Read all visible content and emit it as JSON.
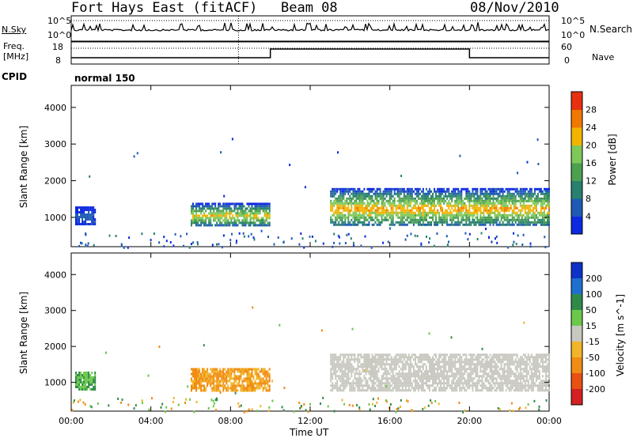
{
  "header": {
    "title": "Fort Hays East (fitACF)",
    "beam": "Beam 08",
    "date": "08/Nov/2010"
  },
  "panels": {
    "nsky_label": "N.Sky",
    "nsearch_label": "N.Search",
    "freq_label_1": "Freq.",
    "freq_label_2": "[MHz]",
    "nave_label": "Nave",
    "cpid_label": "CPID",
    "cpid_value": "normal 150",
    "left_ticks_top": [
      "10^5",
      "10^0"
    ],
    "right_ticks_top": [
      "10^5",
      "10^0"
    ],
    "left_ticks_freq": [
      "18",
      "8"
    ],
    "right_ticks_nave": [
      "60",
      "0"
    ]
  },
  "colors": {
    "power": [
      "#0c28e0",
      "#1e5ab4",
      "#28806e",
      "#4ca050",
      "#7ec85a",
      "#f2b400",
      "#f07800",
      "#e83010"
    ],
    "velocity_pos": [
      "#0c32c8",
      "#1f6fcf",
      "#2f8a4a",
      "#6cc84a"
    ],
    "velocity_zero": "#c8c8c0",
    "velocity_neg": [
      "#f2b428",
      "#f08c14",
      "#e85014",
      "#d42020"
    ]
  },
  "chart_data": [
    {
      "type": "heatmap",
      "title": "Power",
      "xlabel": "Time UT",
      "ylabel": "Slant Range [km]",
      "x_ticks": [
        "00:00",
        "04:00",
        "08:00",
        "12:00",
        "16:00",
        "20:00",
        "00:00"
      ],
      "y_ticks": [
        1000,
        2000,
        3000,
        4000
      ],
      "ylim": [
        200,
        4600
      ],
      "xlim_hours": [
        0,
        24
      ],
      "colorbar": {
        "label": "Power [dB]",
        "ticks": [
          4,
          8,
          12,
          16,
          20,
          24,
          28
        ],
        "range": [
          0,
          32
        ]
      },
      "regions": [
        {
          "t": [
            6.0,
            10.0
          ],
          "range_km": [
            800,
            1400
          ],
          "peak_db": 22
        },
        {
          "t": [
            13.0,
            24.0
          ],
          "range_km": [
            800,
            1800
          ],
          "peak_db": 24
        },
        {
          "t": [
            0.2,
            1.2
          ],
          "range_km": [
            800,
            1300
          ],
          "peak_db": 6
        }
      ]
    },
    {
      "type": "heatmap",
      "title": "Velocity",
      "xlabel": "Time UT",
      "ylabel": "Slant Range [km]",
      "x_ticks": [
        "00:00",
        "04:00",
        "08:00",
        "12:00",
        "16:00",
        "20:00",
        "00:00"
      ],
      "y_ticks": [
        1000,
        2000,
        3000,
        4000
      ],
      "ylim": [
        200,
        4600
      ],
      "xlim_hours": [
        0,
        24
      ],
      "colorbar": {
        "label": "Velocity [m s^-1]",
        "ticks": [
          200,
          100,
          50,
          15,
          -15,
          -50,
          -100,
          -200
        ]
      },
      "regions": [
        {
          "t": [
            6.0,
            10.0
          ],
          "range_km": [
            800,
            1400
          ],
          "velocity_ms": -40
        },
        {
          "t": [
            13.0,
            24.0
          ],
          "range_km": [
            800,
            1800
          ],
          "velocity_ms": 0
        },
        {
          "t": [
            0.2,
            1.2
          ],
          "range_km": [
            800,
            1300
          ],
          "velocity_ms": 60
        }
      ]
    }
  ],
  "time_axis_label": "Time UT",
  "power_cb_label": "Power [dB]",
  "velocity_cb_label": "Velocity [m s^-1]",
  "y_axis_label": "Slant Range [km]"
}
